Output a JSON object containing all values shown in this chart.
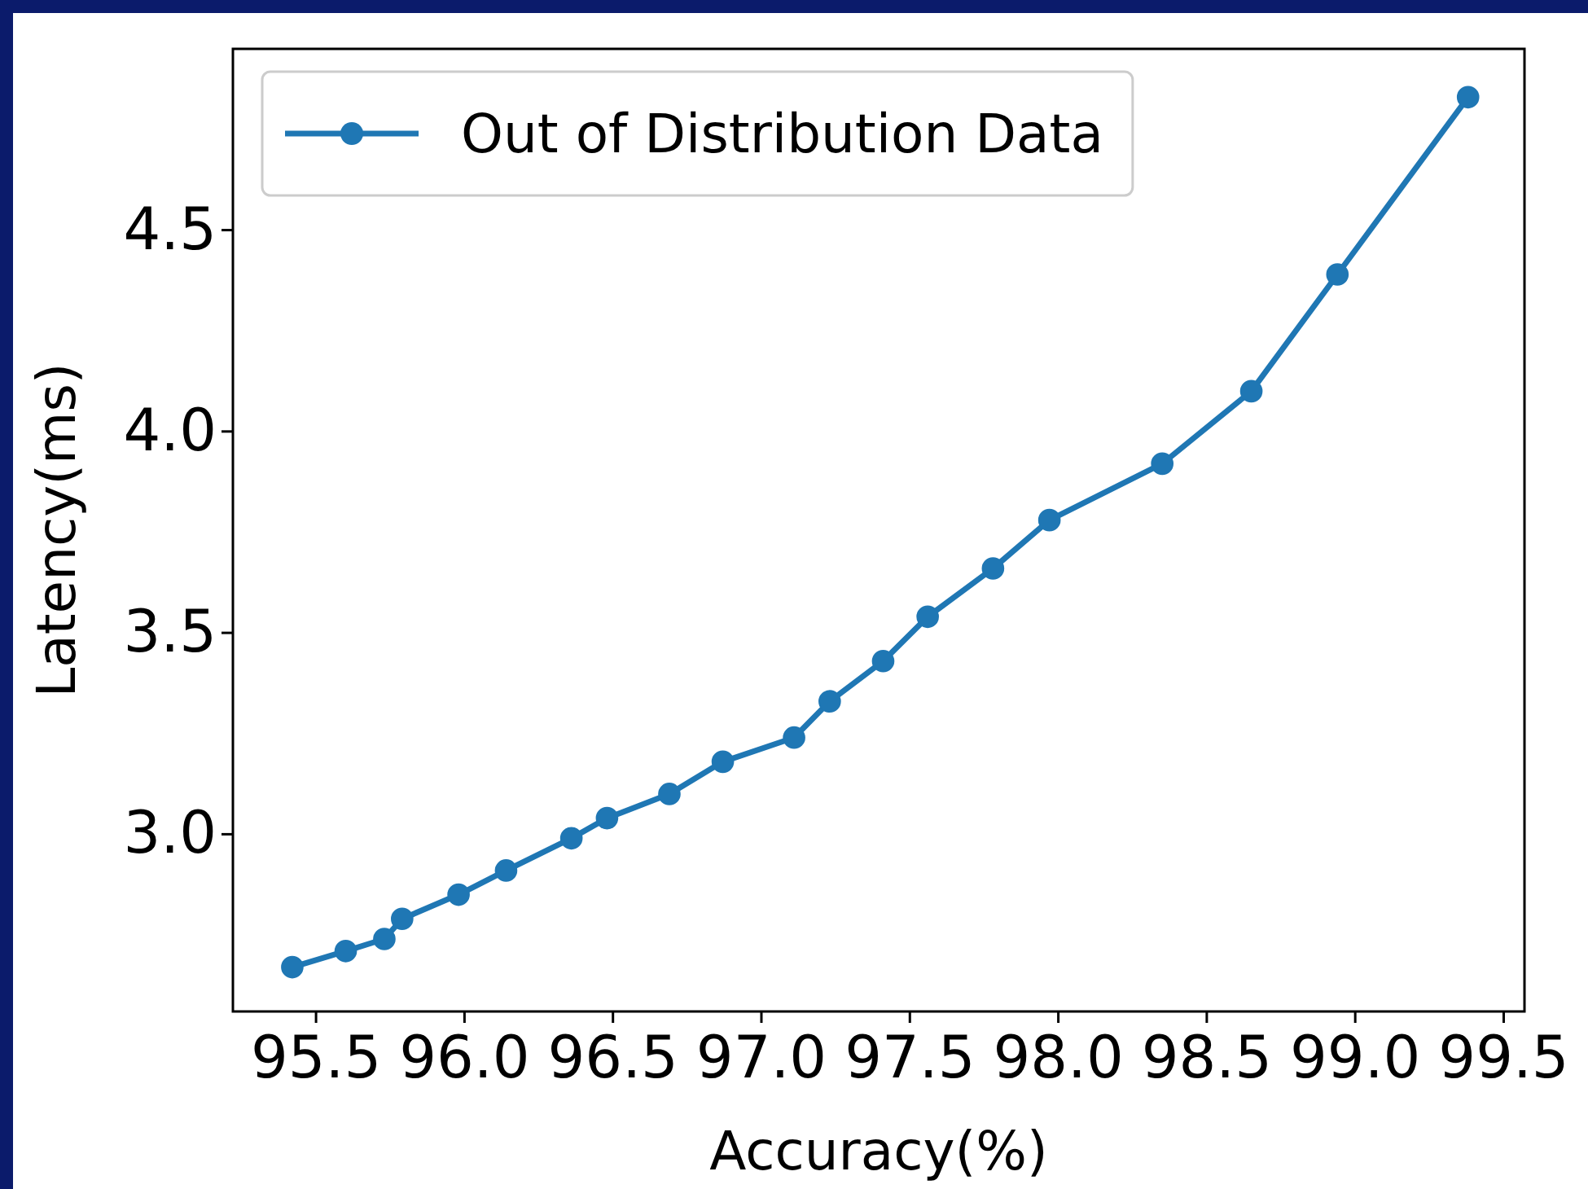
{
  "chart_data": {
    "type": "line",
    "xlabel": "Accuracy(%)",
    "ylabel": "Latency(ms)",
    "x": [
      95.42,
      95.6,
      95.73,
      95.79,
      95.98,
      96.14,
      96.36,
      96.48,
      96.69,
      96.87,
      97.11,
      97.23,
      97.41,
      97.56,
      97.78,
      97.97,
      98.35,
      98.65,
      98.94,
      99.38
    ],
    "series": [
      {
        "name": "Out of Distribution Data",
        "color": "#1f77b4",
        "values": [
          2.67,
          2.71,
          2.74,
          2.79,
          2.85,
          2.91,
          2.99,
          3.04,
          3.1,
          3.18,
          3.24,
          3.33,
          3.43,
          3.54,
          3.66,
          3.78,
          3.92,
          4.1,
          4.39,
          4.83
        ]
      }
    ],
    "xlim": [
      95.22,
      99.57
    ],
    "xticks": [
      {
        "value": 95.5,
        "label": "95.5"
      },
      {
        "value": 96,
        "label": "96.0"
      },
      {
        "value": 96.5,
        "label": "96.5"
      },
      {
        "value": 97,
        "label": "97.0"
      },
      {
        "value": 97.5,
        "label": "97.5"
      },
      {
        "value": 98,
        "label": "98.0"
      },
      {
        "value": 98.5,
        "label": "98.5"
      },
      {
        "value": 99,
        "label": "99.0"
      },
      {
        "value": 99.5,
        "label": "99.5"
      }
    ],
    "ylim": [
      2.56,
      4.95
    ],
    "yticks": [
      {
        "value": 3,
        "label": "3.0"
      },
      {
        "value": 3.5,
        "label": "3.5"
      },
      {
        "value": 4,
        "label": "4.0"
      },
      {
        "value": 4.5,
        "label": "4.5"
      }
    ],
    "legend": "top left",
    "marker": "circle",
    "line_style": "solid",
    "grid": false
  }
}
